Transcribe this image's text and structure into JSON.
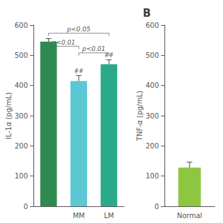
{
  "chart_data": [
    {
      "type": "bar",
      "categories": [
        null,
        "MM",
        "LM"
      ],
      "values": [
        545,
        415,
        470
      ],
      "errors": [
        10,
        18,
        15
      ],
      "colors": [
        "#2d8a50",
        "#5bc8d4",
        "#2aaa8a"
      ],
      "ylabel": "IL-1α (pg/mL)",
      "ylim": [
        0,
        600
      ],
      "yticks": [
        0,
        100,
        200,
        300,
        400,
        500,
        600
      ],
      "grid": false,
      "annotations": [
        {
          "text": "##",
          "x": 1
        },
        {
          "text": "##",
          "x": 2
        },
        {
          "text": "p<0.01",
          "x": [
            0,
            1
          ],
          "y": 530
        },
        {
          "text": "p<0.05",
          "x": [
            0,
            2
          ],
          "y": 573
        },
        {
          "text": "p<0.01",
          "x": [
            1,
            2
          ],
          "y": 508
        }
      ]
    },
    {
      "type": "bar",
      "title": "B",
      "categories": [
        "Normal"
      ],
      "values": [
        128
      ],
      "errors": [
        18
      ],
      "colors": [
        "#8dc63f"
      ],
      "ylabel": "TNF-α (pg/mL)",
      "ylim": [
        0,
        600
      ],
      "yticks": [
        0,
        100,
        200,
        300,
        400,
        500,
        600
      ],
      "grid": false
    }
  ]
}
